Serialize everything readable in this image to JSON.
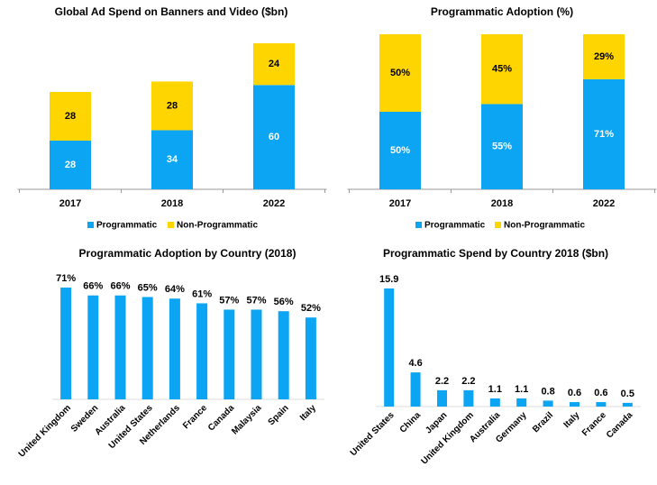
{
  "chart_data": [
    {
      "type": "stacked_bar",
      "title": "Global Ad Spend on Banners and Video ($bn)",
      "categories": [
        "2017",
        "2018",
        "2022"
      ],
      "series": [
        {
          "name": "Programmatic",
          "color": "#0ba5f3",
          "values": [
            28,
            34,
            60
          ]
        },
        {
          "name": "Non-Programmatic",
          "color": "#ffd500",
          "values": [
            28,
            28,
            24
          ]
        }
      ]
    },
    {
      "type": "stacked_bar",
      "title": "Programmatic Adoption (%)",
      "categories": [
        "2017",
        "2018",
        "2022"
      ],
      "series": [
        {
          "name": "Programmatic",
          "color": "#0ba5f3",
          "values": [
            50,
            55,
            71
          ],
          "value_labels": [
            "50%",
            "55%",
            "71%"
          ]
        },
        {
          "name": "Non-Programmatic",
          "color": "#ffd500",
          "values": [
            50,
            45,
            29
          ],
          "value_labels": [
            "50%",
            "45%",
            "29%"
          ]
        }
      ]
    },
    {
      "type": "bar",
      "title": "Programmatic Adoption by Country (2018)",
      "categories": [
        "United Kingdom",
        "Sweden",
        "Australia",
        "United States",
        "Netherlands",
        "France",
        "Canada",
        "Malaysia",
        "Spain",
        "Italy"
      ],
      "values": [
        71,
        66,
        66,
        65,
        64,
        61,
        57,
        57,
        56,
        52
      ],
      "value_labels": [
        "71%",
        "66%",
        "66%",
        "65%",
        "64%",
        "61%",
        "57%",
        "57%",
        "56%",
        "52%"
      ],
      "color": "#0ba5f3"
    },
    {
      "type": "bar",
      "title": "Programmatic Spend by Country 2018 ($bn)",
      "categories": [
        "United States",
        "China",
        "Japan",
        "United Kingdom",
        "Australia",
        "Germany",
        "Brazil",
        "Italy",
        "France",
        "Canada"
      ],
      "values": [
        15.9,
        4.6,
        2.2,
        2.2,
        1.1,
        1.1,
        0.8,
        0.6,
        0.6,
        0.5
      ],
      "color": "#0ba5f3"
    }
  ]
}
